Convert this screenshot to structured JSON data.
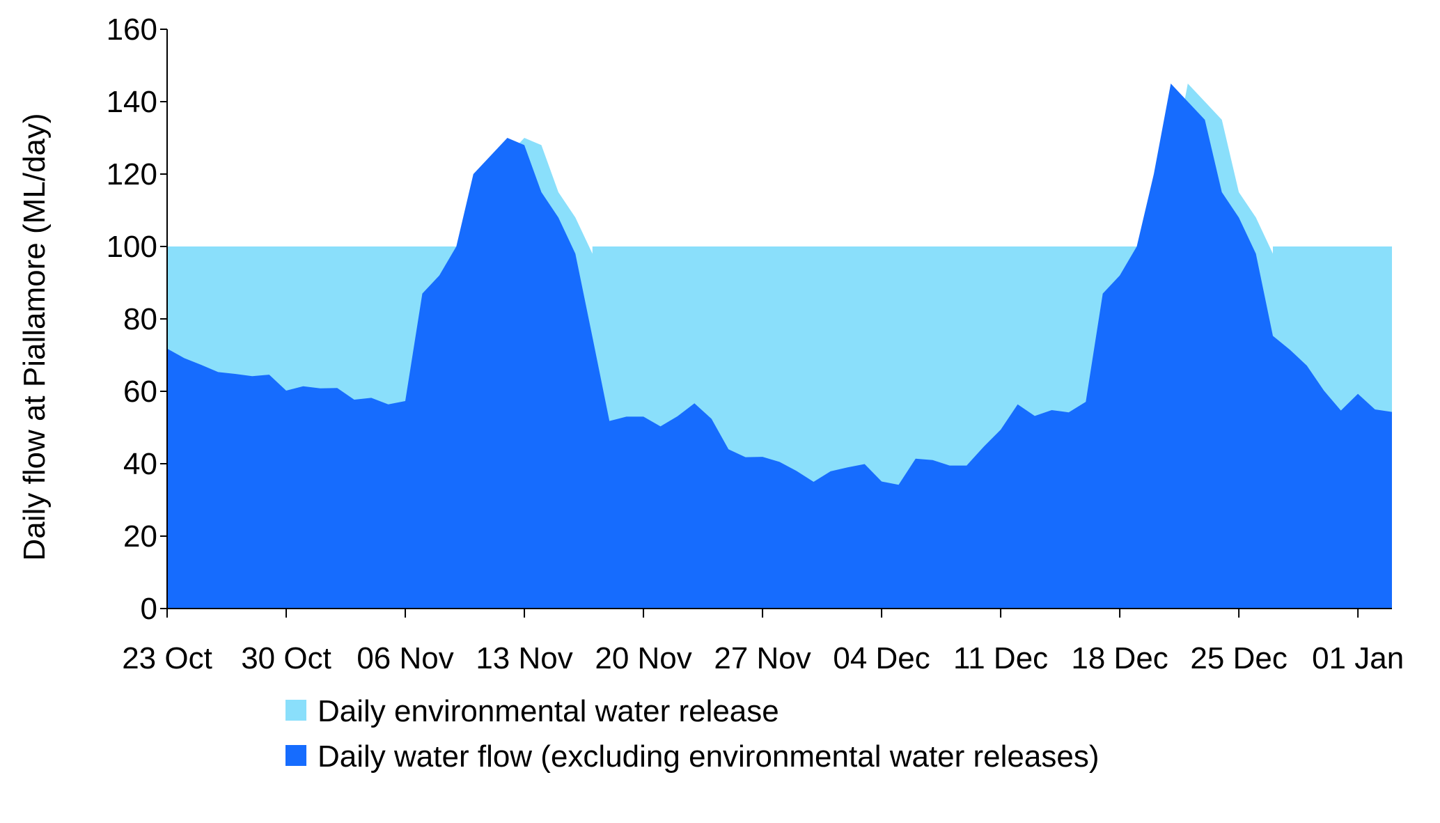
{
  "chart_data": {
    "type": "area",
    "title": "",
    "ylabel": "Daily flow at Piallamore (ML/day)",
    "xlabel": "",
    "ylim": [
      0,
      160
    ],
    "yticks": [
      0,
      20,
      40,
      60,
      80,
      100,
      120,
      140,
      160
    ],
    "xlim": [
      "2023-10-23",
      "2024-01-03"
    ],
    "xticks": [
      {
        "date": "2023-10-23",
        "label": "23 Oct"
      },
      {
        "date": "2023-10-30",
        "label": "30 Oct"
      },
      {
        "date": "2023-11-06",
        "label": "06 Nov"
      },
      {
        "date": "2023-11-13",
        "label": "13 Nov"
      },
      {
        "date": "2023-11-20",
        "label": "20 Nov"
      },
      {
        "date": "2023-11-27",
        "label": "27 Nov"
      },
      {
        "date": "2023-12-04",
        "label": "04 Dec"
      },
      {
        "date": "2023-12-11",
        "label": "11 Dec"
      },
      {
        "date": "2023-12-18",
        "label": "18 Dec"
      },
      {
        "date": "2023-12-25",
        "label": "25 Dec"
      },
      {
        "date": "2024-01-01",
        "label": "01 Jan"
      }
    ],
    "grid": false,
    "legend_position": "bottom",
    "series": [
      {
        "name": "Daily environmental water release",
        "color": "#8ADFFB",
        "points": [
          [
            "2023-10-23",
            100
          ],
          [
            "2023-11-07",
            100
          ],
          [
            "2023-11-08",
            100
          ],
          [
            "2023-11-09",
            100
          ],
          [
            "2023-11-10",
            100
          ],
          [
            "2023-11-11",
            120
          ],
          [
            "2023-11-12",
            125
          ],
          [
            "2023-11-13",
            130
          ],
          [
            "2023-11-14",
            128
          ],
          [
            "2023-11-15",
            115
          ],
          [
            "2023-11-16",
            108
          ],
          [
            "2023-11-17",
            98
          ],
          [
            "2023-11-17",
            100
          ],
          [
            "2023-12-19",
            100
          ],
          [
            "2023-12-20",
            100
          ],
          [
            "2023-12-21",
            120
          ],
          [
            "2023-12-22",
            145
          ],
          [
            "2023-12-23",
            140
          ],
          [
            "2023-12-24",
            135
          ],
          [
            "2023-12-25",
            115
          ],
          [
            "2023-12-26",
            108
          ],
          [
            "2023-12-27",
            98
          ],
          [
            "2023-12-27",
            100
          ],
          [
            "2024-01-03",
            100
          ]
        ]
      },
      {
        "name": "Daily water flow (excluding environmental water releases)",
        "color": "#166CFE",
        "points": [
          [
            "2023-10-23",
            71.8
          ],
          [
            "2023-10-24",
            69.2
          ],
          [
            "2023-10-25",
            67.3
          ],
          [
            "2023-10-26",
            65.3
          ],
          [
            "2023-10-27",
            64.8
          ],
          [
            "2023-10-28",
            64.2
          ],
          [
            "2023-10-29",
            64.6
          ],
          [
            "2023-10-30",
            60.2
          ],
          [
            "2023-10-31",
            61.4
          ],
          [
            "2023-11-01",
            60.8
          ],
          [
            "2023-11-02",
            60.9
          ],
          [
            "2023-11-03",
            57.7
          ],
          [
            "2023-11-04",
            58.2
          ],
          [
            "2023-11-05",
            56.4
          ],
          [
            "2023-11-06",
            57.3
          ],
          [
            "2023-11-07",
            87.0
          ],
          [
            "2023-11-08",
            92.0
          ],
          [
            "2023-11-09",
            100.0
          ],
          [
            "2023-11-10",
            120.0
          ],
          [
            "2023-11-11",
            125.0
          ],
          [
            "2023-11-12",
            130.0
          ],
          [
            "2023-11-13",
            128.0
          ],
          [
            "2023-11-14",
            115.0
          ],
          [
            "2023-11-15",
            108.0
          ],
          [
            "2023-11-16",
            98.0
          ],
          [
            "2023-11-17",
            75.0
          ],
          [
            "2023-11-18",
            51.8
          ],
          [
            "2023-11-19",
            53.0
          ],
          [
            "2023-11-20",
            53.0
          ],
          [
            "2023-11-21",
            50.3
          ],
          [
            "2023-11-22",
            53.1
          ],
          [
            "2023-11-23",
            56.7
          ],
          [
            "2023-11-24",
            52.4
          ],
          [
            "2023-11-25",
            44.0
          ],
          [
            "2023-11-26",
            41.8
          ],
          [
            "2023-11-27",
            41.9
          ],
          [
            "2023-11-28",
            40.5
          ],
          [
            "2023-11-29",
            38.0
          ],
          [
            "2023-11-30",
            35.0
          ],
          [
            "2023-12-01",
            37.9
          ],
          [
            "2023-12-02",
            39.0
          ],
          [
            "2023-12-03",
            39.9
          ],
          [
            "2023-12-04",
            35.1
          ],
          [
            "2023-12-05",
            34.2
          ],
          [
            "2023-12-06",
            41.4
          ],
          [
            "2023-12-07",
            41.0
          ],
          [
            "2023-12-08",
            39.5
          ],
          [
            "2023-12-09",
            39.5
          ],
          [
            "2023-12-10",
            44.7
          ],
          [
            "2023-12-11",
            49.4
          ],
          [
            "2023-12-12",
            56.4
          ],
          [
            "2023-12-13",
            53.2
          ],
          [
            "2023-12-14",
            54.8
          ],
          [
            "2023-12-15",
            54.2
          ],
          [
            "2023-12-16",
            57.1
          ],
          [
            "2023-12-17",
            87.0
          ],
          [
            "2023-12-18",
            92.0
          ],
          [
            "2023-12-19",
            100.0
          ],
          [
            "2023-12-20",
            120.0
          ],
          [
            "2023-12-21",
            145.0
          ],
          [
            "2023-12-22",
            140.0
          ],
          [
            "2023-12-23",
            135.0
          ],
          [
            "2023-12-24",
            115.0
          ],
          [
            "2023-12-25",
            108.0
          ],
          [
            "2023-12-26",
            98.0
          ],
          [
            "2023-12-27",
            75.3
          ],
          [
            "2023-12-28",
            71.5
          ],
          [
            "2023-12-29",
            67.1
          ],
          [
            "2023-12-30",
            60.2
          ],
          [
            "2023-12-31",
            54.7
          ],
          [
            "2024-01-01",
            59.3
          ],
          [
            "2024-01-02",
            55.0
          ],
          [
            "2024-01-03",
            54.3
          ]
        ]
      }
    ]
  }
}
